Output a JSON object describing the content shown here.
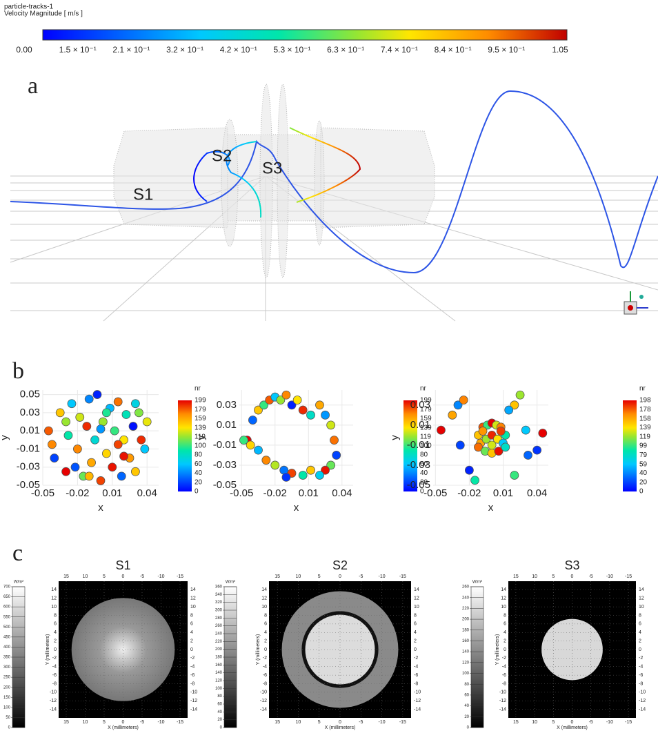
{
  "colorbar": {
    "title": "particle-tracks-1",
    "label": "Velocity Magnitude [ m/s ]",
    "ticks": [
      {
        "value": 0,
        "label": "0.00"
      },
      {
        "value": 0.15,
        "label": "1.5 × 10⁻¹"
      },
      {
        "value": 0.21,
        "label": "2.1 × 10⁻¹"
      },
      {
        "value": 0.32,
        "label": "3.2 × 10⁻¹"
      },
      {
        "value": 0.42,
        "label": "4.2 × 10⁻¹"
      },
      {
        "value": 0.53,
        "label": "5.3 × 10⁻¹"
      },
      {
        "value": 0.63,
        "label": "6.3 × 10⁻¹"
      },
      {
        "value": 0.74,
        "label": "7.4 × 10⁻¹"
      },
      {
        "value": 0.84,
        "label": "8.4 × 10⁻¹"
      },
      {
        "value": 0.95,
        "label": "9.5 × 10⁻¹"
      },
      {
        "value": 1.05,
        "label": "1.05"
      }
    ]
  },
  "panel_a": {
    "label": "a",
    "stations": [
      "S1",
      "S2",
      "S3"
    ]
  },
  "panel_b": {
    "label": "b",
    "charts": [
      {
        "type": "scatter",
        "xlabel": "x",
        "ylabel": "y",
        "xlim": [
          -0.05,
          0.05
        ],
        "ylim": [
          -0.05,
          0.055
        ],
        "xticks": [
          -0.05,
          -0.02,
          0.01,
          0.04
        ],
        "yticks": [
          0.05,
          0.03,
          0.01,
          -0.01,
          -0.03,
          -0.05
        ],
        "colorbar_title": "nr",
        "colorbar_ticks": [
          199,
          179,
          159,
          139,
          119,
          100,
          80,
          60,
          40,
          20,
          0
        ],
        "x": [
          -0.045,
          -0.04,
          -0.035,
          -0.03,
          -0.028,
          -0.025,
          -0.02,
          -0.018,
          -0.015,
          -0.012,
          -0.01,
          -0.008,
          -0.005,
          -0.003,
          0,
          0.002,
          0.005,
          0.008,
          0.01,
          0.012,
          0.015,
          0.018,
          0.02,
          0.022,
          0.025,
          0.028,
          0.03,
          0.033,
          0.035,
          0.038,
          0.04,
          -0.042,
          -0.022,
          0.005,
          -0.01,
          0.015,
          0.03,
          -0.03,
          0,
          0.02
        ],
        "y": [
          0.01,
          -0.02,
          0.03,
          -0.035,
          0.005,
          0.04,
          -0.01,
          0.025,
          -0.04,
          0.015,
          0.045,
          -0.025,
          0,
          0.05,
          -0.045,
          0.02,
          -0.015,
          0.035,
          -0.03,
          0.01,
          0.042,
          -0.04,
          0,
          0.028,
          -0.02,
          0.015,
          -0.035,
          0.03,
          0,
          -0.01,
          0.02,
          -0.005,
          -0.03,
          0.03,
          -0.04,
          -0.005,
          0.04,
          0.02,
          0.012,
          -0.018
        ],
        "nr": [
          180,
          20,
          150,
          199,
          90,
          60,
          170,
          130,
          110,
          190,
          40,
          160,
          75,
          10,
          185,
          120,
          145,
          55,
          195,
          100,
          175,
          30,
          140,
          85,
          165,
          5,
          150,
          115,
          190,
          60,
          135,
          170,
          25,
          95,
          155,
          185,
          70,
          120,
          45,
          195
        ]
      },
      {
        "type": "scatter",
        "xlabel": "x",
        "ylabel": "y",
        "xlim": [
          -0.052,
          0.05
        ],
        "ylim": [
          -0.05,
          0.045
        ],
        "xticks": [
          -0.05,
          -0.02,
          0.01,
          0.04
        ],
        "yticks": [
          0.03,
          0.01,
          -0.01,
          -0.03,
          -0.05
        ],
        "colorbar_title": "nr",
        "colorbar_ticks": [
          199,
          179,
          159,
          139,
          119,
          100,
          80,
          60,
          40,
          20,
          0
        ],
        "x": [
          -0.045,
          -0.04,
          -0.035,
          -0.03,
          -0.025,
          -0.02,
          -0.015,
          -0.01,
          -0.005,
          0,
          0.005,
          0.012,
          0.02,
          0.025,
          0.03,
          0.033,
          0.035,
          0.03,
          0.025,
          0.02,
          0.012,
          0.005,
          -0.005,
          -0.012,
          -0.02,
          -0.028,
          -0.035,
          -0.042,
          -0.048,
          -0.01
        ],
        "y": [
          -0.005,
          0.015,
          0.025,
          0.03,
          0.035,
          0.038,
          0.035,
          0.04,
          0.03,
          0.035,
          0.025,
          0.02,
          0.03,
          0.02,
          0.01,
          -0.005,
          -0.02,
          -0.03,
          -0.035,
          -0.04,
          -0.035,
          -0.04,
          -0.038,
          -0.035,
          -0.03,
          -0.025,
          -0.015,
          -0.01,
          -0.005,
          -0.042
        ],
        "nr": [
          199,
          30,
          150,
          100,
          180,
          60,
          120,
          170,
          10,
          140,
          190,
          80,
          160,
          45,
          130,
          175,
          20,
          110,
          195,
          65,
          150,
          90,
          185,
          35,
          125,
          170,
          55,
          145,
          100,
          15
        ]
      },
      {
        "type": "scatter",
        "xlabel": "x",
        "ylabel": "y",
        "xlim": [
          -0.052,
          0.05
        ],
        "ylim": [
          -0.05,
          0.045
        ],
        "xticks": [
          -0.05,
          -0.02,
          0.01,
          0.04
        ],
        "yticks": [
          0.03,
          0.01,
          -0.01,
          -0.03,
          -0.05
        ],
        "colorbar_title": "nr",
        "colorbar_ticks": [
          198,
          178,
          158,
          139,
          119,
          99,
          79,
          59,
          40,
          20,
          0
        ],
        "x": [
          -0.012,
          -0.008,
          -0.004,
          0,
          0.004,
          0.008,
          0.012,
          -0.01,
          -0.005,
          0,
          0.005,
          0.01,
          -0.012,
          -0.006,
          0,
          0.006,
          0.012,
          -0.008,
          0,
          0.008,
          -0.045,
          -0.035,
          -0.03,
          -0.028,
          -0.02,
          0.02,
          0.025,
          0.03,
          0.032,
          0.04,
          -0.015,
          0.02,
          0.045,
          -0.025,
          0.015
        ],
        "y": [
          0,
          0.008,
          0.01,
          0.012,
          0.01,
          0.008,
          0,
          -0.008,
          -0.004,
          0,
          -0.004,
          -0.008,
          -0.012,
          -0.016,
          -0.018,
          -0.016,
          -0.012,
          0.004,
          -0.01,
          0.004,
          0.005,
          0.02,
          0.03,
          -0.01,
          -0.035,
          0.03,
          0.04,
          0.005,
          -0.02,
          -0.015,
          -0.045,
          -0.04,
          0.002,
          0.035,
          0.025
        ],
        "nr": [
          150,
          180,
          100,
          198,
          130,
          170,
          90,
          160,
          120,
          190,
          140,
          60,
          175,
          110,
          150,
          195,
          80,
          165,
          130,
          185,
          198,
          160,
          40,
          20,
          10,
          150,
          120,
          60,
          30,
          15,
          90,
          100,
          198,
          170,
          50
        ]
      }
    ]
  },
  "panel_c": {
    "label": "c",
    "charts": [
      {
        "title": "S1",
        "unit": "W/m²",
        "xlabel": "X (millimeters)",
        "ylabel": "Y (millimeters)",
        "xlim": [
          17,
          -17
        ],
        "ylim": [
          16,
          -16
        ],
        "xticks": [
          15,
          10,
          5,
          0,
          -5,
          -10,
          -15
        ],
        "yticks": [
          14,
          12,
          10,
          8,
          6,
          4,
          2,
          0,
          -2,
          -4,
          -6,
          -8,
          -10,
          -12,
          -14
        ],
        "colorbar_ticks": [
          700,
          650,
          600,
          550,
          500,
          450,
          400,
          350,
          300,
          250,
          200,
          150,
          100,
          50,
          0
        ]
      },
      {
        "title": "S2",
        "unit": "W/m²",
        "xlabel": "X (millimeters)",
        "ylabel": "Y (millimeters)",
        "xlim": [
          17,
          -17
        ],
        "ylim": [
          16,
          -16
        ],
        "xticks": [
          15,
          10,
          5,
          0,
          -5,
          -10,
          -15
        ],
        "yticks": [
          14,
          12,
          10,
          8,
          6,
          4,
          2,
          0,
          -2,
          -4,
          -6,
          -8,
          -10,
          -12,
          -14
        ],
        "colorbar_ticks": [
          360,
          340,
          320,
          300,
          280,
          260,
          240,
          220,
          200,
          180,
          160,
          140,
          120,
          100,
          80,
          60,
          40,
          20,
          0
        ]
      },
      {
        "title": "S3",
        "unit": "W/m²",
        "xlabel": "X (millimeters)",
        "ylabel": "Y (millimeters)",
        "xlim": [
          17,
          -17
        ],
        "ylim": [
          16,
          -16
        ],
        "xticks": [
          15,
          10,
          5,
          0,
          -5,
          -10,
          -15
        ],
        "yticks": [
          14,
          12,
          10,
          8,
          6,
          4,
          2,
          0,
          -2,
          -4,
          -6,
          -8,
          -10,
          -12,
          -14
        ],
        "colorbar_ticks": [
          260,
          240,
          220,
          200,
          180,
          160,
          140,
          120,
          100,
          80,
          60,
          40,
          20,
          0
        ]
      }
    ]
  }
}
